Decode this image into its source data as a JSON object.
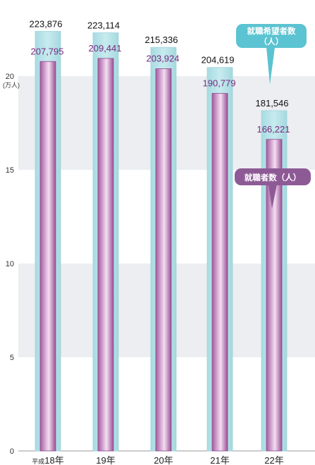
{
  "chart_data": {
    "type": "bar",
    "unit_label": "(万人)",
    "categories_prefix": "平成",
    "categories": [
      "18年",
      "19年",
      "20年",
      "21年",
      "22年"
    ],
    "y_ticks": [
      "0",
      "5",
      "10",
      "15",
      "20"
    ],
    "ylim": [
      0,
      240000
    ],
    "series": [
      {
        "name": "就職希望者数（人）",
        "values": [
          223876,
          223114,
          215336,
          204619,
          181546
        ],
        "labels": [
          "223,876",
          "223,114",
          "215,336",
          "204,619",
          "181,546"
        ],
        "color": "#b3e0e6"
      },
      {
        "name": "就職者数（人）",
        "values": [
          207795,
          209441,
          203924,
          190779,
          166221
        ],
        "labels": [
          "207,795",
          "209,441",
          "203,924",
          "190,779",
          "166,221"
        ],
        "color": "#a0609c"
      }
    ],
    "grid": "alternating horizontal bands",
    "colors": {
      "band": "#eceef1",
      "legend_applicants": "#5bc3d1",
      "legend_employed": "#8e5a96",
      "employed_label": "#7a2a7e"
    }
  }
}
